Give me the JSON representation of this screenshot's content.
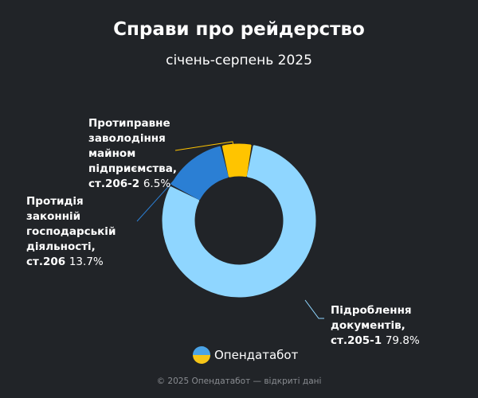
{
  "header": {
    "title": "Справи про рейдерство",
    "subtitle": "січень-серпень 2025"
  },
  "chart_data": {
    "type": "pie",
    "variant": "donut",
    "title": "Справи про рейдерство",
    "subtitle": "січень-серпень 2025",
    "slices": [
      {
        "label": "Підроблення документів, ст.205-1",
        "value": 79.8,
        "pct_label": "79.8%",
        "color": "#8fd6ff"
      },
      {
        "label": "Протидія законній господарській діяльності, ст.206",
        "value": 13.7,
        "pct_label": "13.7%",
        "color": "#2b7fd4"
      },
      {
        "label": "Протиправне заволодіння майном підприємства, ст.206-2",
        "value": 6.5,
        "pct_label": "6.5%",
        "color": "#ffc400"
      }
    ]
  },
  "branding": {
    "logo_text": "Опендатабот"
  },
  "footer": {
    "text": "© 2025 Опендатабот — відкриті дані"
  }
}
